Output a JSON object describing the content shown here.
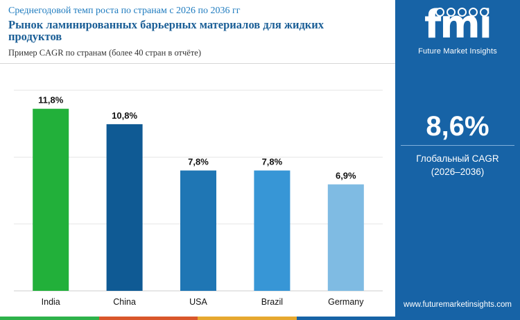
{
  "header": {
    "subtitle": "Среднегодовой темп роста по странам с 2026 по 2036 гг",
    "title": "Рынок ламинированных барьерных материалов для жидких продуктов",
    "caption": "Пример CAGR по странам (более 40 стран в отчёте)"
  },
  "side_panel": {
    "brand": "fmi",
    "tagline": "Future Market Insights",
    "global_value": "8,6%",
    "global_label": "Глобальный CAGR",
    "global_period": "(2026–2036)",
    "website": "www.futuremarketinsights.com",
    "background": "#1763a6"
  },
  "bottom_stripe_colors": [
    "#2eb24a",
    "#d9572b",
    "#e6a82f",
    "#1763a6"
  ],
  "chart_data": {
    "type": "bar",
    "categories": [
      "India",
      "China",
      "USA",
      "Brazil",
      "Germany"
    ],
    "values": [
      11.8,
      10.8,
      7.8,
      7.8,
      6.9
    ],
    "value_labels": [
      "11,8%",
      "10,8%",
      "7,8%",
      "7,8%",
      "6,9%"
    ],
    "colors": [
      "#22b03a",
      "#0f5a94",
      "#1f76b4",
      "#3796d6",
      "#7fbbe3"
    ],
    "ylim": [
      0,
      13
    ],
    "grid": true,
    "title": "",
    "xlabel": "",
    "ylabel": ""
  }
}
